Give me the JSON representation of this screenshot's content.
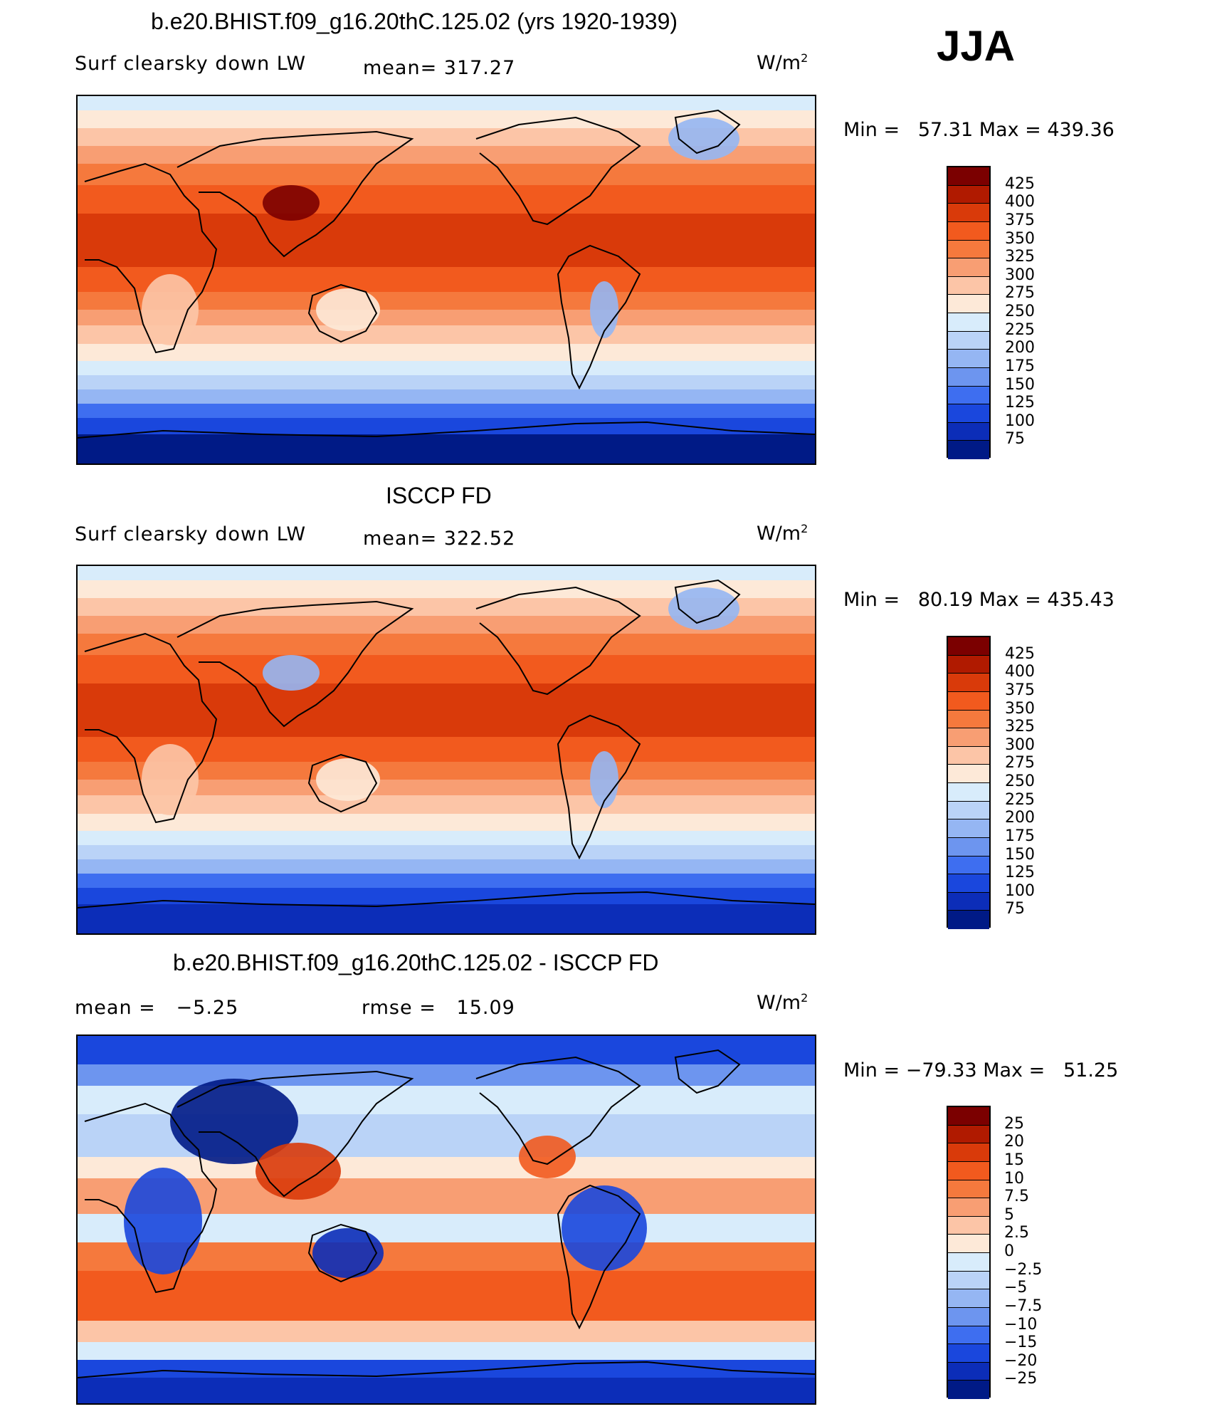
{
  "season": "JJA",
  "panels": [
    {
      "title": "b.e20.BHIST.f09_g16.20thC.125.02 (yrs 1920-1939)",
      "subtitle_left": "Surf clearsky down LW",
      "subtitle_mid": "mean= 317.27",
      "units": "W/m",
      "units_sup": "2",
      "minmax": "Min =   57.31 Max = 439.36",
      "colorbar_labels": [
        "425",
        "400",
        "375",
        "350",
        "325",
        "300",
        "275",
        "250",
        "225",
        "200",
        "175",
        "150",
        "125",
        "100",
        "75"
      ],
      "field": "model"
    },
    {
      "title": "ISCCP FD",
      "subtitle_left": "Surf clearsky down LW",
      "subtitle_mid": "mean= 322.52",
      "units": "W/m",
      "units_sup": "2",
      "minmax": "Min =   80.19 Max = 435.43",
      "colorbar_labels": [
        "425",
        "400",
        "375",
        "350",
        "325",
        "300",
        "275",
        "250",
        "225",
        "200",
        "175",
        "150",
        "125",
        "100",
        "75"
      ],
      "field": "obs"
    },
    {
      "title": "b.e20.BHIST.f09_g16.20thC.125.02 - ISCCP FD",
      "subtitle_left": "mean =   −5.25",
      "subtitle_mid": "rmse =   15.09",
      "units": "W/m",
      "units_sup": "2",
      "minmax": "Min = −79.33 Max =   51.25",
      "colorbar_labels": [
        "25",
        "20",
        "15",
        "10",
        "7.5",
        "5",
        "2.5",
        "0",
        "−2.5",
        "−5",
        "−7.5",
        "−10",
        "−15",
        "−20",
        "−25"
      ],
      "field": "diff"
    }
  ],
  "colors": {
    "palette": [
      "#7b0000",
      "#b01a00",
      "#d93a0a",
      "#f25a1e",
      "#f5793d",
      "#f89e73",
      "#fcc5a7",
      "#fde9d8",
      "#d8ecfb",
      "#bad3f7",
      "#95b6f3",
      "#6d95ef",
      "#3e6ef0",
      "#1a47dd",
      "#0c2db8",
      "#001a86"
    ]
  }
}
